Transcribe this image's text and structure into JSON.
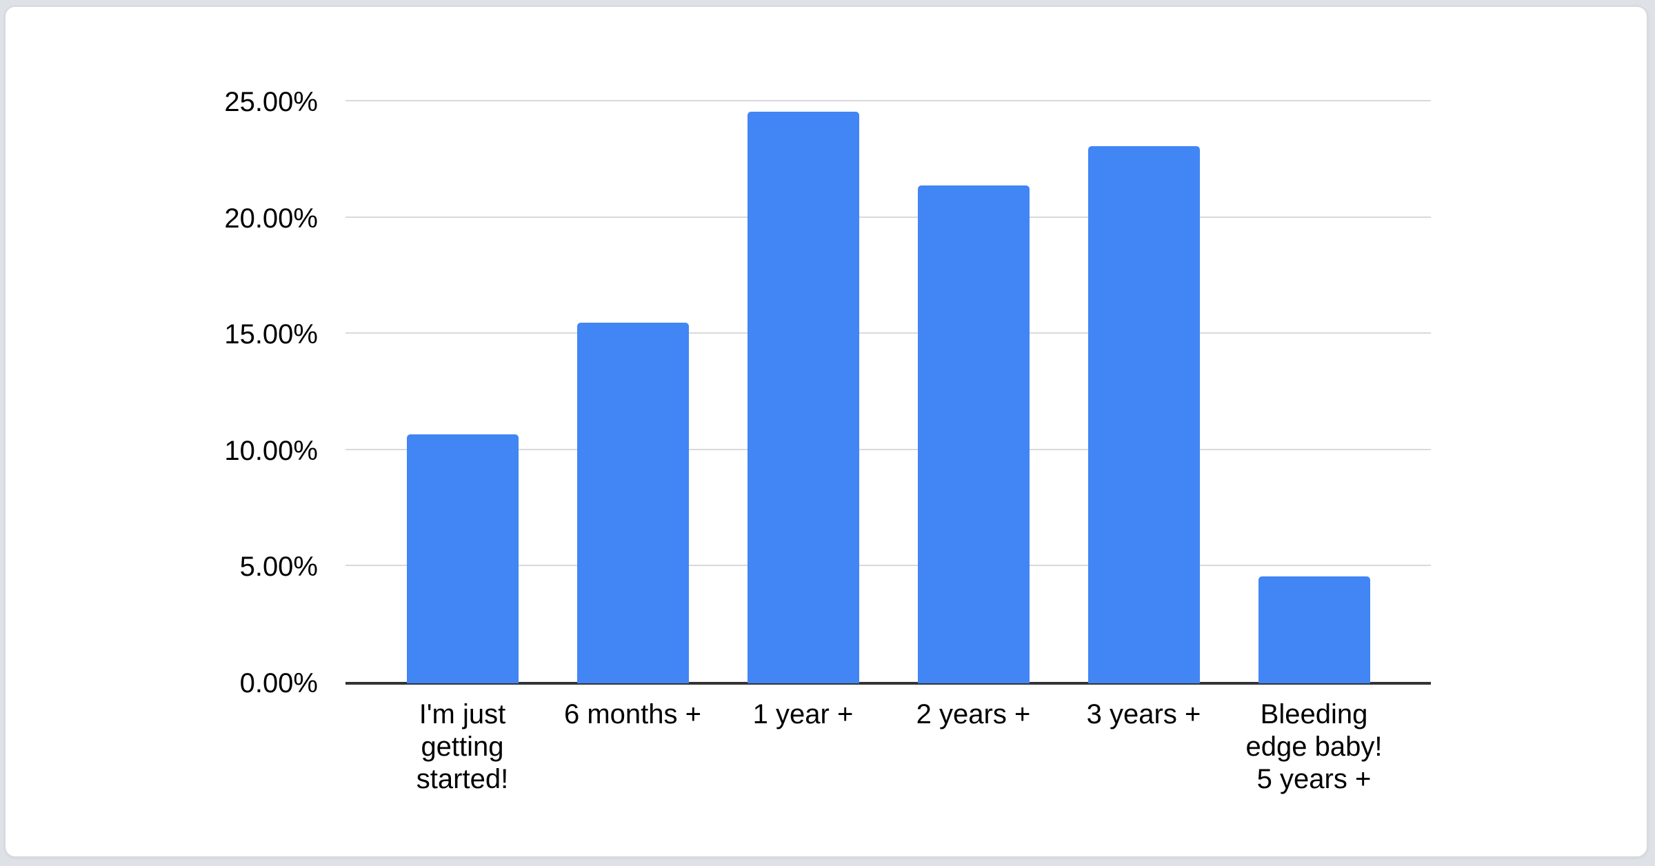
{
  "page": {
    "background_color": "#dee1e6"
  },
  "card": {
    "background_color": "#ffffff",
    "border_color": "#d6d9de"
  },
  "chart_data": {
    "type": "bar",
    "title": "",
    "xlabel": "",
    "ylabel": "",
    "categories": [
      "I'm just\ngetting\nstarted!",
      "6 months +",
      "1 year +",
      "2 years +",
      "3 years +",
      "Bleeding\nedge baby!\n5 years +"
    ],
    "values": [
      10.7,
      15.5,
      24.6,
      21.4,
      23.1,
      4.6
    ],
    "value_unit": "%",
    "ylim": [
      0,
      25
    ],
    "y_ticks": [
      {
        "value": 0,
        "label": "0.00%"
      },
      {
        "value": 5,
        "label": "5.00%"
      },
      {
        "value": 10,
        "label": "10.00%"
      },
      {
        "value": 15,
        "label": "15.00%"
      },
      {
        "value": 20,
        "label": "20.00%"
      },
      {
        "value": 25,
        "label": "25.00%"
      }
    ],
    "grid": true,
    "legend_position": "none",
    "bar_color": "#4285f4",
    "gridline_color": "#d9d9d9",
    "axis_line_color": "#333333",
    "tick_label_color": "#000000"
  }
}
